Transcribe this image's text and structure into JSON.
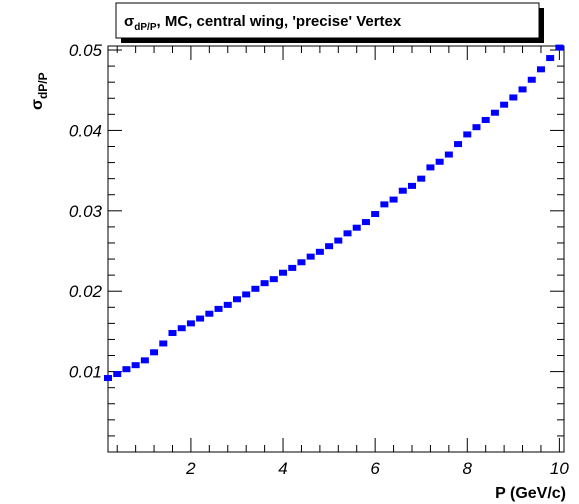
{
  "chart_data": {
    "type": "scatter",
    "title_symbol": "σ",
    "title_sub": "dP/P",
    "title_rest": ", MC, central wing, 'precise' Vertex",
    "ylabel_symbol": "σ",
    "ylabel_sub": "dP/P",
    "xlabel": "P (GeV/c)",
    "xlim": [
      0.2,
      10.1
    ],
    "ylim": [
      0.0,
      0.0505
    ],
    "x_ticks": [
      2,
      4,
      6,
      8,
      10
    ],
    "x_tick_labels": [
      "2",
      "4",
      "6",
      "8",
      "10"
    ],
    "y_ticks": [
      0.01,
      0.02,
      0.03,
      0.04,
      0.05
    ],
    "y_tick_labels": [
      "0.01",
      "0.02",
      "0.03",
      "0.04",
      "0.05"
    ],
    "marker_color": "#0000ff",
    "series": [
      {
        "x": [
          0.2,
          0.4,
          0.6,
          0.8,
          1.0,
          1.2,
          1.4,
          1.6,
          1.8,
          2.0,
          2.2,
          2.4,
          2.6,
          2.8,
          3.0,
          3.2,
          3.4,
          3.6,
          3.8,
          4.0,
          4.2,
          4.4,
          4.6,
          4.8,
          5.0,
          5.2,
          5.4,
          5.6,
          5.8,
          6.0,
          6.2,
          6.4,
          6.6,
          6.8,
          7.0,
          7.2,
          7.4,
          7.6,
          7.8,
          8.0,
          8.2,
          8.4,
          8.6,
          8.8,
          9.0,
          9.2,
          9.4,
          9.6,
          9.8,
          10.0
        ],
        "y": [
          0.0092,
          0.0097,
          0.0103,
          0.0108,
          0.0114,
          0.0124,
          0.0135,
          0.0148,
          0.0154,
          0.016,
          0.0166,
          0.0172,
          0.0178,
          0.0183,
          0.019,
          0.0196,
          0.0203,
          0.021,
          0.0215,
          0.0223,
          0.0229,
          0.0236,
          0.0243,
          0.0249,
          0.0256,
          0.0263,
          0.0272,
          0.0279,
          0.0286,
          0.0296,
          0.0308,
          0.0314,
          0.0325,
          0.0331,
          0.034,
          0.0354,
          0.0361,
          0.037,
          0.0383,
          0.0395,
          0.0404,
          0.0413,
          0.0422,
          0.0432,
          0.0441,
          0.0451,
          0.0463,
          0.0476,
          0.049,
          0.0503
        ]
      }
    ]
  }
}
